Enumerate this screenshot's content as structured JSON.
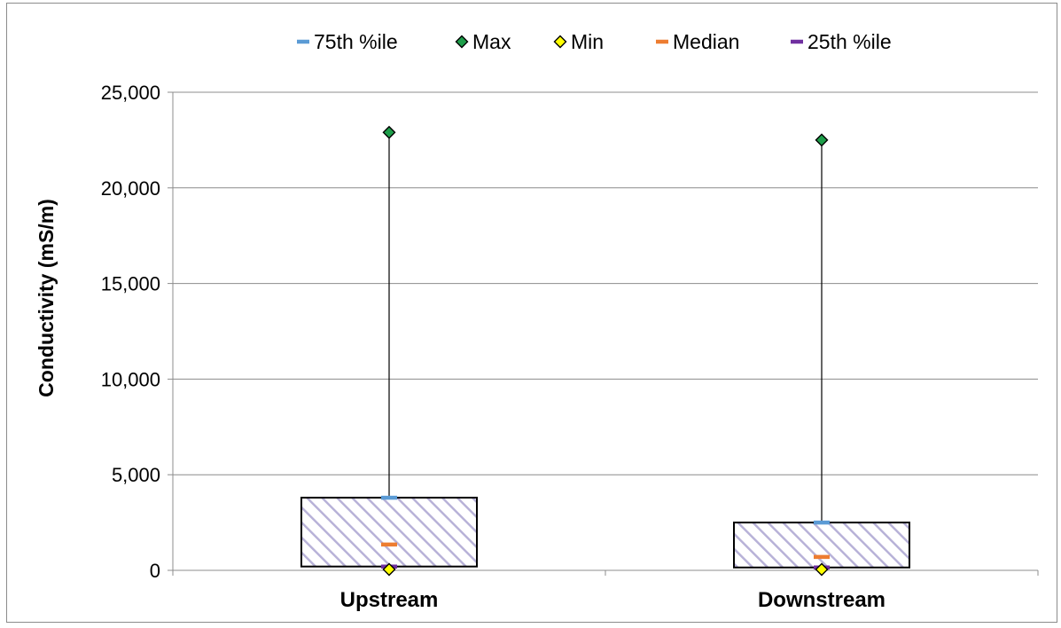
{
  "chart_data": {
    "type": "box",
    "categories": [
      "Upstream",
      "Downstream"
    ],
    "ylabel": "Conductivity (mS/m)",
    "xlabel": "",
    "ylim": [
      0,
      25000
    ],
    "yticks": [
      0,
      5000,
      10000,
      15000,
      20000,
      25000
    ],
    "ytick_labels": [
      "0",
      "5,000",
      "10,000",
      "15,000",
      "20,000",
      "25,000"
    ],
    "grid": true,
    "legend_position": "top",
    "series": [
      {
        "name": "75th %ile",
        "marker": "dash",
        "color": "#5b9bd5",
        "values": [
          3800,
          2500
        ]
      },
      {
        "name": "Max",
        "marker": "diamond",
        "color": "#1e9e4a",
        "values": [
          22900,
          22500
        ]
      },
      {
        "name": "Min",
        "marker": "diamond",
        "color": "#ffff00",
        "values": [
          0,
          0
        ]
      },
      {
        "name": "Median",
        "marker": "dash",
        "color": "#ed7d31",
        "values": [
          1350,
          700
        ]
      },
      {
        "name": "25th %ile",
        "marker": "dash",
        "color": "#7030a0",
        "values": [
          200,
          150
        ]
      }
    ],
    "box_fill": "#d9d5ea",
    "box_hatch_color": "#b8b2d8"
  }
}
